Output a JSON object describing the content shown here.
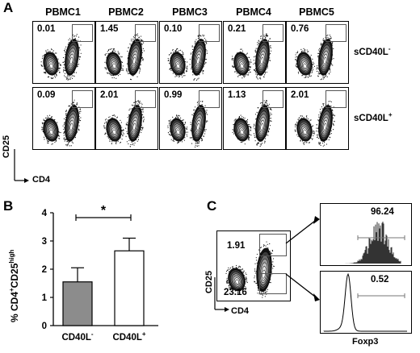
{
  "panels": {
    "A": "A",
    "B": "B",
    "C": "C"
  },
  "panel_a": {
    "columns": [
      "PBMC1",
      "PBMC2",
      "PBMC3",
      "PBMC4",
      "PBMC5"
    ],
    "rows": [
      {
        "label": "sCD40L",
        "sup": "-",
        "values": [
          "0.01",
          "1.45",
          "0.10",
          "0.21",
          "0.76"
        ]
      },
      {
        "label": "sCD40L",
        "sup": "+",
        "values": [
          "0.09",
          "2.01",
          "0.99",
          "1.13",
          "2.01"
        ]
      }
    ],
    "y_axis": "CD25",
    "x_axis": "CD4"
  },
  "panel_c": {
    "dot_plot": {
      "upper_gate": "1.91",
      "lower_gate": "23.16",
      "y_axis": "CD25",
      "x_axis": "CD4"
    },
    "histograms": [
      {
        "value": "96.24"
      },
      {
        "value": "0.52"
      }
    ],
    "hist_x_axis": "Foxp3"
  },
  "chart_data": {
    "type": "bar",
    "categories": [
      {
        "label": "CD40L",
        "sup": "-"
      },
      {
        "label": "CD40L",
        "sup": "+"
      }
    ],
    "values": [
      1.55,
      2.65
    ],
    "errors": [
      0.5,
      0.45
    ],
    "ylim": [
      0,
      4
    ],
    "yticks": [
      "0",
      "1",
      "2",
      "3",
      "4"
    ],
    "ylabel": {
      "base": "% CD4",
      "sup1": "+",
      "mid": "CD25",
      "sup2": "high"
    },
    "significance": "*",
    "bar_colors": [
      "#8c8c8c",
      "#ffffff"
    ]
  }
}
